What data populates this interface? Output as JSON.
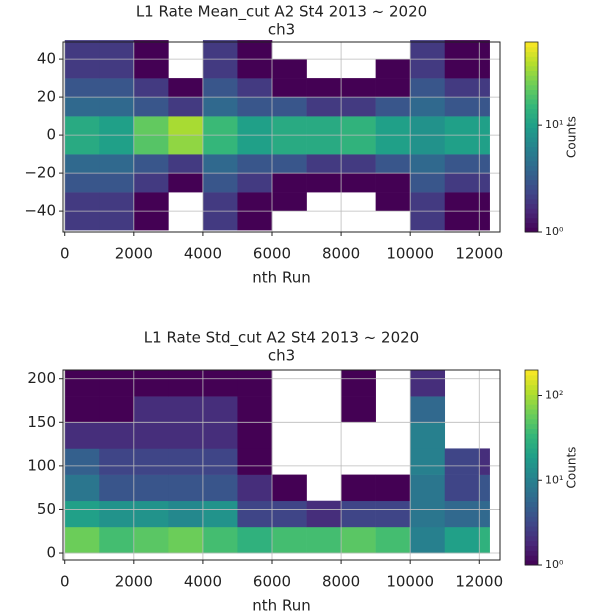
{
  "chart_data": [
    {
      "type": "hist2d",
      "title": "L1 Rate Mean_cut A2 St4 2013 ~ 2020",
      "subtitle": "ch3",
      "xlabel": "nth Run",
      "colorbar_label": "Counts",
      "colormap": "viridis",
      "log_color": true,
      "grid": true,
      "x_bins": [
        0,
        1000,
        2000,
        3000,
        4000,
        5000,
        6000,
        7000,
        8000,
        9000,
        10000,
        11000,
        12000,
        12300
      ],
      "y_bins": [
        -50,
        -40,
        -30,
        -20,
        -10,
        0,
        10,
        20,
        30,
        40,
        50
      ],
      "values": [
        [
          2,
          2,
          1,
          0,
          2,
          1,
          0,
          0,
          0,
          0,
          2,
          1,
          1
        ],
        [
          2,
          2,
          1,
          0,
          2,
          1,
          1,
          0,
          0,
          1,
          2,
          1,
          1
        ],
        [
          3,
          3,
          2,
          1,
          3,
          2,
          1,
          1,
          1,
          1,
          3,
          2,
          2
        ],
        [
          4,
          4,
          3,
          2,
          4,
          3,
          3,
          2,
          2,
          3,
          4,
          3,
          3
        ],
        [
          12,
          10,
          20,
          30,
          15,
          10,
          12,
          12,
          14,
          10,
          8,
          10,
          10
        ],
        [
          12,
          10,
          22,
          35,
          16,
          10,
          12,
          12,
          14,
          10,
          8,
          10,
          10
        ],
        [
          4,
          4,
          3,
          2,
          4,
          3,
          3,
          2,
          2,
          3,
          4,
          3,
          3
        ],
        [
          3,
          3,
          2,
          1,
          3,
          2,
          1,
          1,
          1,
          1,
          3,
          2,
          2
        ],
        [
          2,
          2,
          1,
          0,
          2,
          1,
          1,
          0,
          0,
          1,
          2,
          1,
          1
        ],
        [
          2,
          2,
          1,
          0,
          2,
          1,
          0,
          0,
          0,
          0,
          2,
          1,
          1
        ]
      ],
      "xlim": [
        -50,
        12600
      ],
      "ylim": [
        -51,
        49
      ],
      "xticks": [
        0,
        2000,
        4000,
        6000,
        8000,
        10000,
        12000
      ],
      "yticks": [
        {
          "value": -40,
          "label": "−40"
        },
        {
          "value": -20,
          "label": "−20"
        },
        0,
        20,
        40
      ],
      "clim": [
        1,
        60
      ],
      "cticks": [
        {
          "value": 1,
          "label": "10⁰"
        },
        {
          "value": 10,
          "label": "10¹"
        }
      ]
    },
    {
      "type": "hist2d",
      "title": "L1 Rate Std_cut A2 St4 2013 ~ 2020",
      "subtitle": "ch3",
      "xlabel": "nth Run",
      "colorbar_label": "Counts",
      "colormap": "viridis",
      "log_color": true,
      "grid": true,
      "x_bins": [
        0,
        1000,
        2000,
        3000,
        4000,
        5000,
        6000,
        7000,
        8000,
        9000,
        10000,
        11000,
        12000,
        12300
      ],
      "y_bins": [
        0,
        30,
        60,
        90,
        120,
        150,
        180,
        210
      ],
      "values": [
        [
          60,
          40,
          50,
          60,
          40,
          30,
          40,
          40,
          50,
          40,
          10,
          20,
          30
        ],
        [
          20,
          15,
          15,
          12,
          15,
          3,
          3,
          2,
          3,
          3,
          8,
          6,
          6
        ],
        [
          8,
          4,
          4,
          4,
          4,
          2,
          1,
          0,
          1,
          1,
          8,
          3,
          4
        ],
        [
          5,
          3,
          3,
          3,
          3,
          1,
          0,
          0,
          0,
          0,
          10,
          3,
          2
        ],
        [
          2,
          2,
          2,
          2,
          2,
          1,
          0,
          0,
          0,
          0,
          10,
          0,
          0
        ],
        [
          1,
          1,
          2,
          2,
          2,
          1,
          0,
          0,
          1,
          0,
          6,
          0,
          0
        ],
        [
          1,
          1,
          1,
          1,
          1,
          1,
          0,
          0,
          1,
          0,
          2,
          0,
          0
        ]
      ],
      "xlim": [
        -50,
        12600
      ],
      "ylim": [
        -8,
        210
      ],
      "xticks": [
        0,
        2000,
        4000,
        6000,
        8000,
        10000,
        12000
      ],
      "yticks": [
        0,
        50,
        100,
        150,
        200
      ],
      "clim": [
        1,
        200
      ],
      "cticks": [
        {
          "value": 1,
          "label": "10⁰"
        },
        {
          "value": 10,
          "label": "10¹"
        },
        {
          "value": 100,
          "label": "10²"
        }
      ]
    }
  ]
}
